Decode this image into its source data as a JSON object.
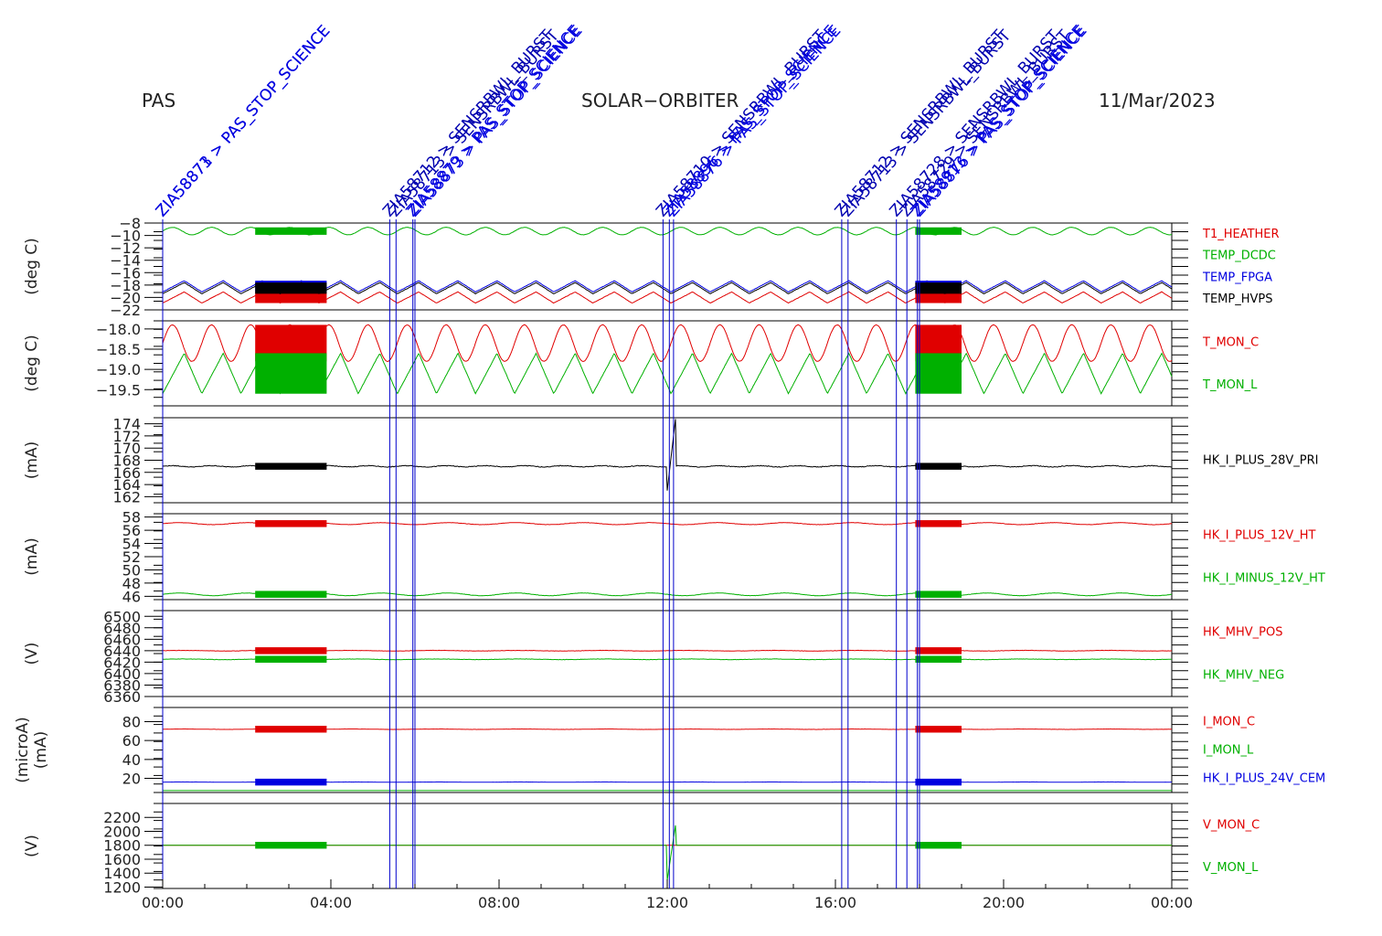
{
  "header": {
    "left": "PAS",
    "center": "SOLAR−ORBITER",
    "right": "11/Mar/2023"
  },
  "colors": {
    "red": "#e00000",
    "green": "#00b000",
    "blue": "#0000e0",
    "black": "#000000",
    "marker": "#0000c0"
  },
  "chart_data": {
    "type": "line",
    "x_ticks": [
      "00:00",
      "04:00",
      "08:00",
      "12:00",
      "16:00",
      "20:00",
      "00:00"
    ],
    "x_range_hours": [
      0,
      24
    ],
    "dense_intervals_hours": [
      [
        2.2,
        3.9
      ],
      [
        17.9,
        19.0
      ]
    ],
    "annotations": [
      {
        "t": 0.0,
        "text": "ZIA58871 > PAS_STOP_SCIENCE",
        "color": "#0000e0"
      },
      {
        "t": 0.0,
        "text": "ZIA58873 > PAS_STOP_SCIENCE",
        "color": "#0000e0"
      },
      {
        "t": 5.4,
        "text": "ZIA58712 > SENSRBWL_BURST",
        "color": "#0000b0"
      },
      {
        "t": 5.55,
        "text": "ZIA58713 > SENSRBWL_BURST",
        "color": "#0000b0"
      },
      {
        "t": 5.95,
        "text": "ZIA58879 > PAS_STOP_SCIENCE",
        "color": "#0000e0"
      },
      {
        "t": 6.0,
        "text": "ZIA58873 > PAS_STOP_SCIENCE",
        "color": "#0000e0"
      },
      {
        "t": 11.9,
        "text": "ZIA58710 > SENSRBWL_BURST",
        "color": "#0000b0"
      },
      {
        "t": 12.05,
        "text": "ZIA58896 > PAS_STOP_SCIENCE",
        "color": "#0000e0"
      },
      {
        "t": 12.15,
        "text": "ZIA58876 > PAS_STOP_SCIENCE",
        "color": "#0000e0"
      },
      {
        "t": 16.15,
        "text": "ZIA58712 > SENSRBWL_BURST",
        "color": "#0000b0"
      },
      {
        "t": 16.3,
        "text": "ZIA58713 > SENSRBWL_BURST",
        "color": "#0000b0"
      },
      {
        "t": 17.45,
        "text": "ZIA58728 > SENSRBWL_BURST",
        "color": "#0000b0"
      },
      {
        "t": 17.7,
        "text": "ZIA58729 > SENSRBWL_BURST",
        "color": "#0000b0"
      },
      {
        "t": 17.95,
        "text": "ZIA58913 > PAS_STOP_SCIENCE",
        "color": "#0000e0"
      },
      {
        "t": 18.0,
        "text": "ZIA58876 > PAS_STOP_SCIENCE",
        "color": "#0000e0"
      }
    ],
    "panels": [
      {
        "ylabel": "(deg C)",
        "ylim": [
          -22,
          -8
        ],
        "yticks": [
          -8,
          -10,
          -12,
          -14,
          -16,
          -18,
          -20,
          -22
        ],
        "ytick_labels": [
          "−8",
          "−10",
          "−12",
          "−14",
          "−16",
          "−18",
          "−20",
          "−22"
        ],
        "series": [
          {
            "name": "T1_HEATHER",
            "color": "#e00000",
            "base": -20.0,
            "amp": 0.9,
            "period_h": 0.93,
            "noise": 0.05,
            "shape": "saw"
          },
          {
            "name": "TEMP_DCDC",
            "color": "#00b000",
            "base": -9.3,
            "amp": 0.6,
            "period_h": 0.93,
            "noise": 0.05,
            "shape": "sine"
          },
          {
            "name": "TEMP_FPGA",
            "color": "#0000e0",
            "base": -18.2,
            "amp": 0.9,
            "period_h": 0.93,
            "noise": 0.05,
            "shape": "saw"
          },
          {
            "name": "TEMP_HVPS",
            "color": "#000000",
            "base": -18.5,
            "amp": 0.9,
            "period_h": 0.93,
            "noise": 0.05,
            "shape": "saw"
          }
        ]
      },
      {
        "ylabel": "(deg C)",
        "ylim": [
          -19.9,
          -17.8
        ],
        "yticks": [
          -18.0,
          -18.5,
          -19.0,
          -19.5
        ],
        "ytick_labels": [
          "−18.0",
          "−18.5",
          "−19.0",
          "−19.5"
        ],
        "series": [
          {
            "name": "T_MON_C",
            "color": "#e00000",
            "base": -18.35,
            "amp": 0.45,
            "period_h": 0.93,
            "noise": 0.01,
            "shape": "sine"
          },
          {
            "name": "T_MON_L",
            "color": "#00b000",
            "base": -19.1,
            "amp": 0.5,
            "period_h": 0.93,
            "noise": 0.01,
            "shape": "saw"
          }
        ]
      },
      {
        "ylabel": "(mA)",
        "ylim": [
          161,
          175
        ],
        "yticks": [
          174,
          172,
          170,
          168,
          166,
          164,
          162
        ],
        "ytick_labels": [
          "174",
          "172",
          "170",
          "168",
          "166",
          "164",
          "162"
        ],
        "series": [
          {
            "name": "HK_I_PLUS_28V_PRI",
            "color": "#000000",
            "base": 167.0,
            "amp": 0.1,
            "period_h": 0.93,
            "noise": 0.12,
            "shape": "sine",
            "spike": [
              12.0,
              12.2,
              163,
              175
            ]
          }
        ]
      },
      {
        "ylabel": "(mA)",
        "ylim": [
          45.5,
          58.5
        ],
        "yticks": [
          58,
          56,
          54,
          52,
          50,
          48,
          46
        ],
        "ytick_labels": [
          "58",
          "56",
          "54",
          "52",
          "50",
          "48",
          "46"
        ],
        "series": [
          {
            "name": "HK_I_PLUS_12V_HT",
            "color": "#e00000",
            "base": 57.0,
            "amp": 0.15,
            "period_h": 1.6,
            "noise": 0.05,
            "shape": "sine"
          },
          {
            "name": "HK_I_MINUS_12V_HT",
            "color": "#00b000",
            "base": 46.3,
            "amp": 0.2,
            "period_h": 1.6,
            "noise": 0.05,
            "shape": "sine"
          }
        ]
      },
      {
        "ylabel": "(V)",
        "ylim": [
          6360,
          6510
        ],
        "yticks": [
          6500,
          6480,
          6460,
          6440,
          6420,
          6400,
          6380,
          6360
        ],
        "ytick_labels": [
          "6500",
          "6480",
          "6460",
          "6440",
          "6420",
          "6400",
          "6380",
          "6360"
        ],
        "series": [
          {
            "name": "HK_MHV_POS",
            "color": "#e00000",
            "base": 6440,
            "amp": 0.5,
            "period_h": 2.0,
            "noise": 0.6,
            "shape": "sine"
          },
          {
            "name": "HK_MHV_NEG",
            "color": "#00b000",
            "base": 6425,
            "amp": 0.5,
            "period_h": 2.0,
            "noise": 0.6,
            "shape": "sine"
          }
        ]
      },
      {
        "ylabel": "(microA)\n(mA)",
        "ylim": [
          5,
          95
        ],
        "yticks": [
          80,
          60,
          40,
          20
        ],
        "ytick_labels": [
          "80",
          "60",
          "40",
          "20"
        ],
        "series": [
          {
            "name": "I_MON_C",
            "color": "#e00000",
            "base": 72,
            "amp": 0.2,
            "period_h": 2.0,
            "noise": 0.2,
            "shape": "sine"
          },
          {
            "name": "I_MON_L",
            "color": "#00b000",
            "base": 7,
            "amp": 0.0,
            "period_h": 2.0,
            "noise": 0.0,
            "shape": "sine"
          },
          {
            "name": "HK_I_PLUS_24V_CEM",
            "color": "#0000e0",
            "base": 16,
            "amp": 0.1,
            "period_h": 2.0,
            "noise": 0.1,
            "shape": "sine"
          }
        ]
      },
      {
        "ylabel": "(V)",
        "ylim": [
          1180,
          2400
        ],
        "yticks": [
          2200,
          2000,
          1800,
          1600,
          1400,
          1200
        ],
        "ytick_labels": [
          "2200",
          "2000",
          "1800",
          "1600",
          "1400",
          "1200"
        ],
        "series": [
          {
            "name": "V_MON_C",
            "color": "#e00000",
            "base": 1800,
            "amp": 0,
            "period_h": 2.0,
            "noise": 0,
            "shape": "sine"
          },
          {
            "name": "V_MON_L",
            "color": "#00b000",
            "base": 1800,
            "amp": 0,
            "period_h": 2.0,
            "noise": 0,
            "shape": "sine",
            "spike": [
              12.0,
              12.2,
              1300,
              2100
            ]
          }
        ]
      }
    ]
  }
}
